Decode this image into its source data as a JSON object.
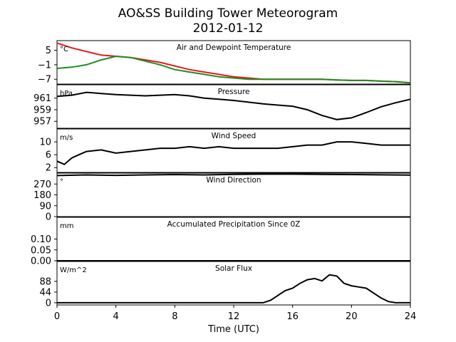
{
  "title": "AO&SS Building Tower Meteorogram",
  "subtitle": "2012-01-12",
  "xlabel": "Time (UTC)",
  "x_ticks": [
    "0",
    "4",
    "8",
    "12",
    "16",
    "20",
    "24"
  ],
  "chart_data": [
    {
      "type": "line",
      "title": "Air and Dewpoint Temperature",
      "unit": "°C",
      "ylim": [
        -9,
        9
      ],
      "y_ticks": [
        "5",
        "−1",
        "−7"
      ],
      "y_tick_values": [
        5,
        -1,
        -7
      ],
      "series": [
        {
          "color": "#e41a1c",
          "x": [
            0,
            1,
            2,
            3,
            4,
            5,
            6,
            7,
            8,
            9,
            10,
            11,
            12,
            13,
            14,
            15,
            16,
            17,
            18,
            19,
            20,
            21,
            22,
            23,
            24
          ],
          "y": [
            8,
            6,
            4.5,
            3,
            2.5,
            2,
            1,
            0,
            -1.5,
            -3,
            -4,
            -5,
            -6,
            -6.5,
            -7,
            -7,
            -7,
            -7,
            -7,
            -7.3,
            -7.5,
            -7.5,
            -7.8,
            -8,
            -8.5
          ]
        },
        {
          "color": "#228b22",
          "x": [
            0,
            1,
            2,
            3,
            4,
            5,
            6,
            7,
            8,
            9,
            10,
            11,
            12,
            13,
            14,
            15,
            16,
            17,
            18,
            19,
            20,
            21,
            22,
            23,
            24
          ],
          "y": [
            -2.5,
            -2,
            -1,
            1,
            2.5,
            2,
            0.5,
            -1,
            -3,
            -4,
            -5,
            -6,
            -6.5,
            -7,
            -7,
            -7,
            -7,
            -7,
            -7,
            -7.3,
            -7.5,
            -7.5,
            -7.8,
            -8,
            -8.5
          ]
        }
      ]
    },
    {
      "type": "line",
      "title": "Pressure",
      "unit": "hPa",
      "ylim": [
        955.8,
        963.3
      ],
      "y_ticks": [
        "961",
        "959",
        "957"
      ],
      "y_tick_values": [
        961,
        959,
        957
      ],
      "series": [
        {
          "color": "#000000",
          "x": [
            0,
            1,
            2,
            3,
            4,
            5,
            6,
            7,
            8,
            9,
            10,
            11,
            12,
            13,
            14,
            15,
            16,
            17,
            18,
            19,
            20,
            21,
            22,
            23,
            24
          ],
          "y": [
            961.3,
            961.5,
            962,
            961.8,
            961.6,
            961.5,
            961.4,
            961.5,
            961.6,
            961.4,
            961,
            960.8,
            960.6,
            960.3,
            960,
            959.8,
            959.6,
            959,
            958,
            957.3,
            957.6,
            958.5,
            959.5,
            960.2,
            960.8
          ]
        }
      ]
    },
    {
      "type": "line",
      "title": "Wind Speed",
      "unit": "m/s",
      "ylim": [
        0.5,
        14
      ],
      "y_ticks": [
        "10",
        "6",
        "2"
      ],
      "y_tick_values": [
        10,
        6,
        2
      ],
      "series": [
        {
          "color": "#000000",
          "x": [
            0,
            0.5,
            1,
            1.5,
            2,
            3,
            4,
            5,
            6,
            7,
            8,
            9,
            10,
            11,
            12,
            13,
            14,
            15,
            16,
            17,
            18,
            19,
            20,
            21,
            22,
            23,
            24
          ],
          "y": [
            4,
            3,
            5,
            6,
            7,
            7.5,
            6.5,
            7,
            7.5,
            8,
            8,
            8.5,
            8,
            8.5,
            8,
            8,
            8,
            8,
            8.5,
            9,
            9,
            10,
            10,
            9.5,
            9,
            9,
            9
          ]
        }
      ]
    },
    {
      "type": "line",
      "title": "Wind Direction",
      "unit": "°",
      "ylim": [
        0,
        360
      ],
      "y_ticks": [
        "270",
        "180",
        "90",
        "0"
      ],
      "y_tick_values": [
        270,
        180,
        90,
        0
      ],
      "series": [
        {
          "color": "#000000",
          "x": [
            0,
            2,
            4,
            6,
            8,
            10,
            12,
            14,
            16,
            18,
            20,
            22,
            24
          ],
          "y": [
            340,
            345,
            342,
            345,
            348,
            345,
            350,
            352,
            352,
            350,
            348,
            346,
            344
          ]
        }
      ]
    },
    {
      "type": "line",
      "title": "Accumulated Precipitation Since 0Z",
      "unit": "mm",
      "ylim": [
        0,
        0.2
      ],
      "y_ticks": [
        "0.10",
        "0.05",
        "0.00"
      ],
      "y_tick_values": [
        0.1,
        0.05,
        0
      ],
      "series": [
        {
          "color": "#000000",
          "x": [
            0,
            24
          ],
          "y": [
            0,
            0
          ]
        }
      ]
    },
    {
      "type": "line",
      "title": "Solar Flux",
      "unit": "W/m^2",
      "ylim": [
        -9,
        170
      ],
      "y_ticks": [
        "88",
        "44",
        "0"
      ],
      "y_tick_values": [
        88,
        44,
        0
      ],
      "series": [
        {
          "color": "#000000",
          "x": [
            0,
            14,
            14.5,
            15,
            15.5,
            16,
            16.5,
            17,
            17.5,
            18,
            18.5,
            19,
            19.5,
            20,
            20.5,
            21,
            21.5,
            22,
            22.5,
            23,
            24
          ],
          "y": [
            0,
            0,
            10,
            30,
            50,
            60,
            80,
            95,
            100,
            90,
            115,
            110,
            80,
            70,
            65,
            60,
            40,
            20,
            5,
            0,
            0
          ]
        }
      ]
    }
  ]
}
